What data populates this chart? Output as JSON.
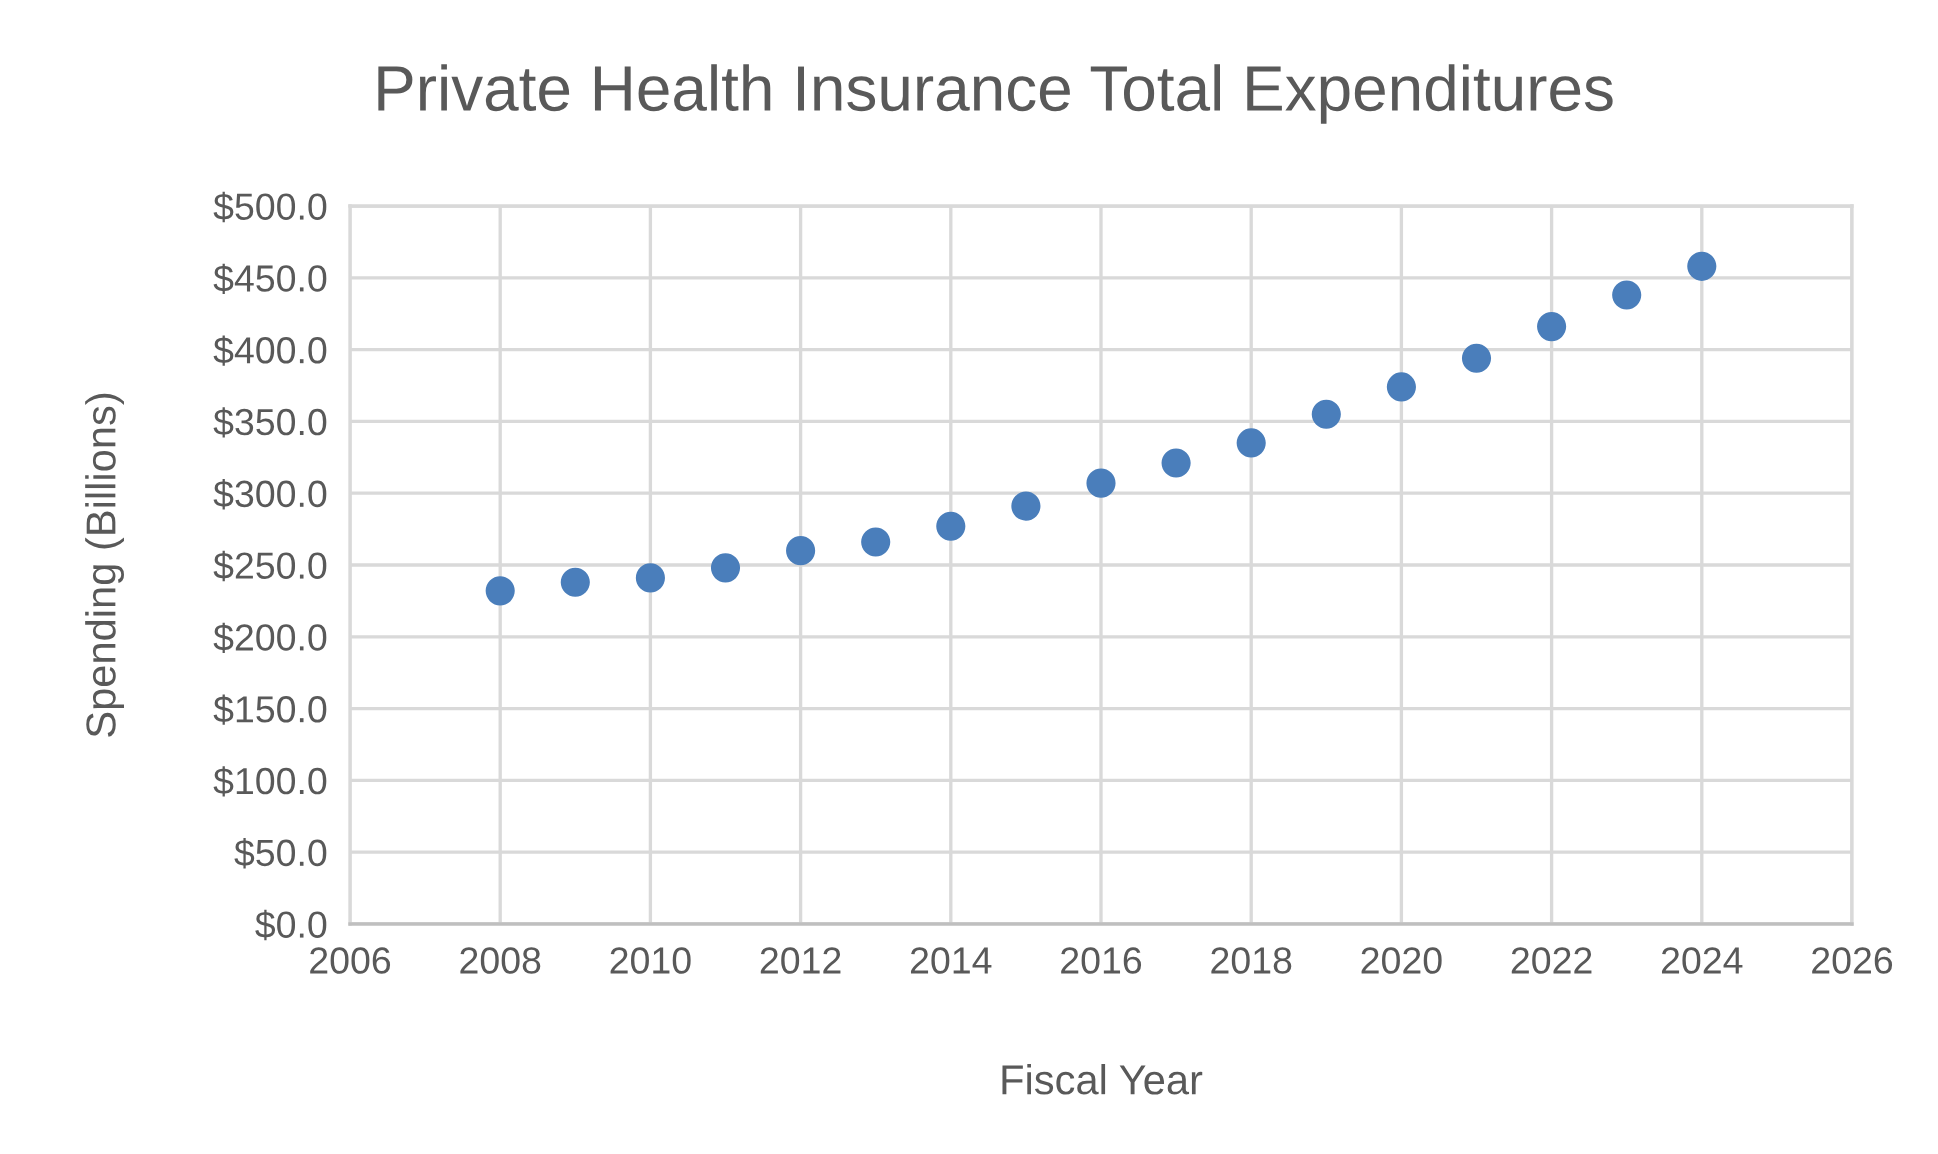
{
  "chart_data": {
    "type": "scatter",
    "title": "Private Health Insurance Total Expenditures",
    "xlabel": "Fiscal Year",
    "ylabel": "Spending (Billions)",
    "x": [
      2008,
      2009,
      2010,
      2011,
      2012,
      2013,
      2014,
      2015,
      2016,
      2017,
      2018,
      2019,
      2020,
      2021,
      2022,
      2023,
      2024
    ],
    "series": [
      {
        "color": "#4a7ebb",
        "values": [
          232,
          238,
          241,
          248,
          260,
          266,
          277,
          291,
          307,
          321,
          335,
          355,
          374,
          394,
          416,
          438,
          458
        ]
      }
    ],
    "xlim": [
      2006,
      2026
    ],
    "xticks": [
      2006,
      2008,
      2010,
      2012,
      2014,
      2016,
      2018,
      2020,
      2022,
      2024,
      2026
    ],
    "ylim": [
      0,
      500
    ],
    "yticks": [
      {
        "value": 0,
        "label": "$0.0"
      },
      {
        "value": 50,
        "label": "$50.0"
      },
      {
        "value": 100,
        "label": "$100.0"
      },
      {
        "value": 150,
        "label": "$150.0"
      },
      {
        "value": 200,
        "label": "$200.0"
      },
      {
        "value": 250,
        "label": "$250.0"
      },
      {
        "value": 300,
        "label": "$300.0"
      },
      {
        "value": 350,
        "label": "$350.0"
      },
      {
        "value": 400,
        "label": "$400.0"
      },
      {
        "value": 450,
        "label": "$450.0"
      },
      {
        "value": 500,
        "label": "$500.0"
      }
    ],
    "grid": true,
    "marker": "circle"
  }
}
